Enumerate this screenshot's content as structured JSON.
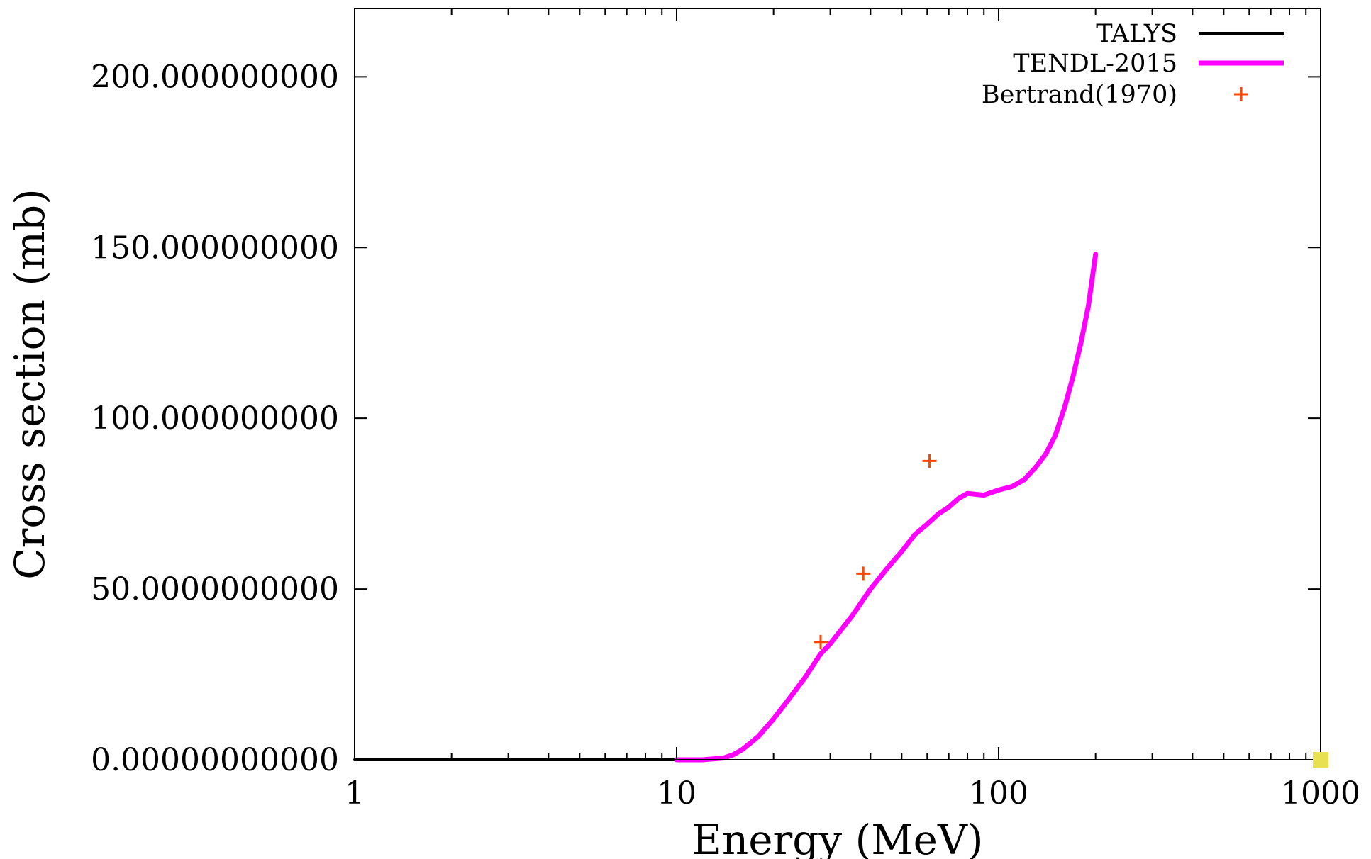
{
  "chart_data": {
    "type": "line",
    "xlabel": "Energy (MeV)",
    "ylabel": "Cross section (mb)",
    "xscale": "log",
    "xlim": [
      1,
      1000
    ],
    "ylim": [
      0,
      220
    ],
    "grid": false,
    "legend_position": "top-right",
    "x_ticks": [
      {
        "value": 1,
        "label": "1"
      },
      {
        "value": 10,
        "label": "10"
      },
      {
        "value": 100,
        "label": "100"
      },
      {
        "value": 1000,
        "label": "1000"
      }
    ],
    "y_ticks": [
      {
        "value": 0,
        "label": "0.00000000000"
      },
      {
        "value": 50,
        "label": "50.0000000000"
      },
      {
        "value": 100,
        "label": "100.000000000"
      },
      {
        "value": 150,
        "label": "150.000000000"
      },
      {
        "value": 200,
        "label": "200.000000000"
      }
    ],
    "series": [
      {
        "name": "TALYS",
        "style": "line",
        "color": "#000000",
        "x": [
          1,
          2,
          5,
          10
        ],
        "y": [
          0,
          0,
          0,
          0
        ]
      },
      {
        "name": "TENDL-2015",
        "style": "line",
        "color": "#ff00ff",
        "x": [
          10,
          12,
          14,
          15,
          16,
          17,
          18,
          20,
          22,
          25,
          28,
          30,
          35,
          40,
          45,
          50,
          55,
          60,
          65,
          70,
          75,
          80,
          90,
          100,
          110,
          120,
          130,
          140,
          150,
          160,
          170,
          180,
          190,
          200
        ],
        "y": [
          0,
          0,
          0.5,
          1.5,
          3,
          5,
          7,
          12,
          17,
          24,
          31,
          34,
          42,
          50,
          56,
          61,
          66,
          69,
          72,
          74,
          76.5,
          78,
          77.5,
          79,
          80,
          82,
          85.5,
          89.5,
          95,
          103,
          112,
          122,
          133,
          148
        ]
      },
      {
        "name": "Bertrand(1970)",
        "style": "points",
        "marker": "+",
        "color": "#ff4500",
        "x": [
          28,
          38,
          61
        ],
        "y": [
          34.5,
          54.5,
          87.5
        ]
      }
    ]
  },
  "decoration": {
    "corner_marker_color": "#e8e050"
  }
}
